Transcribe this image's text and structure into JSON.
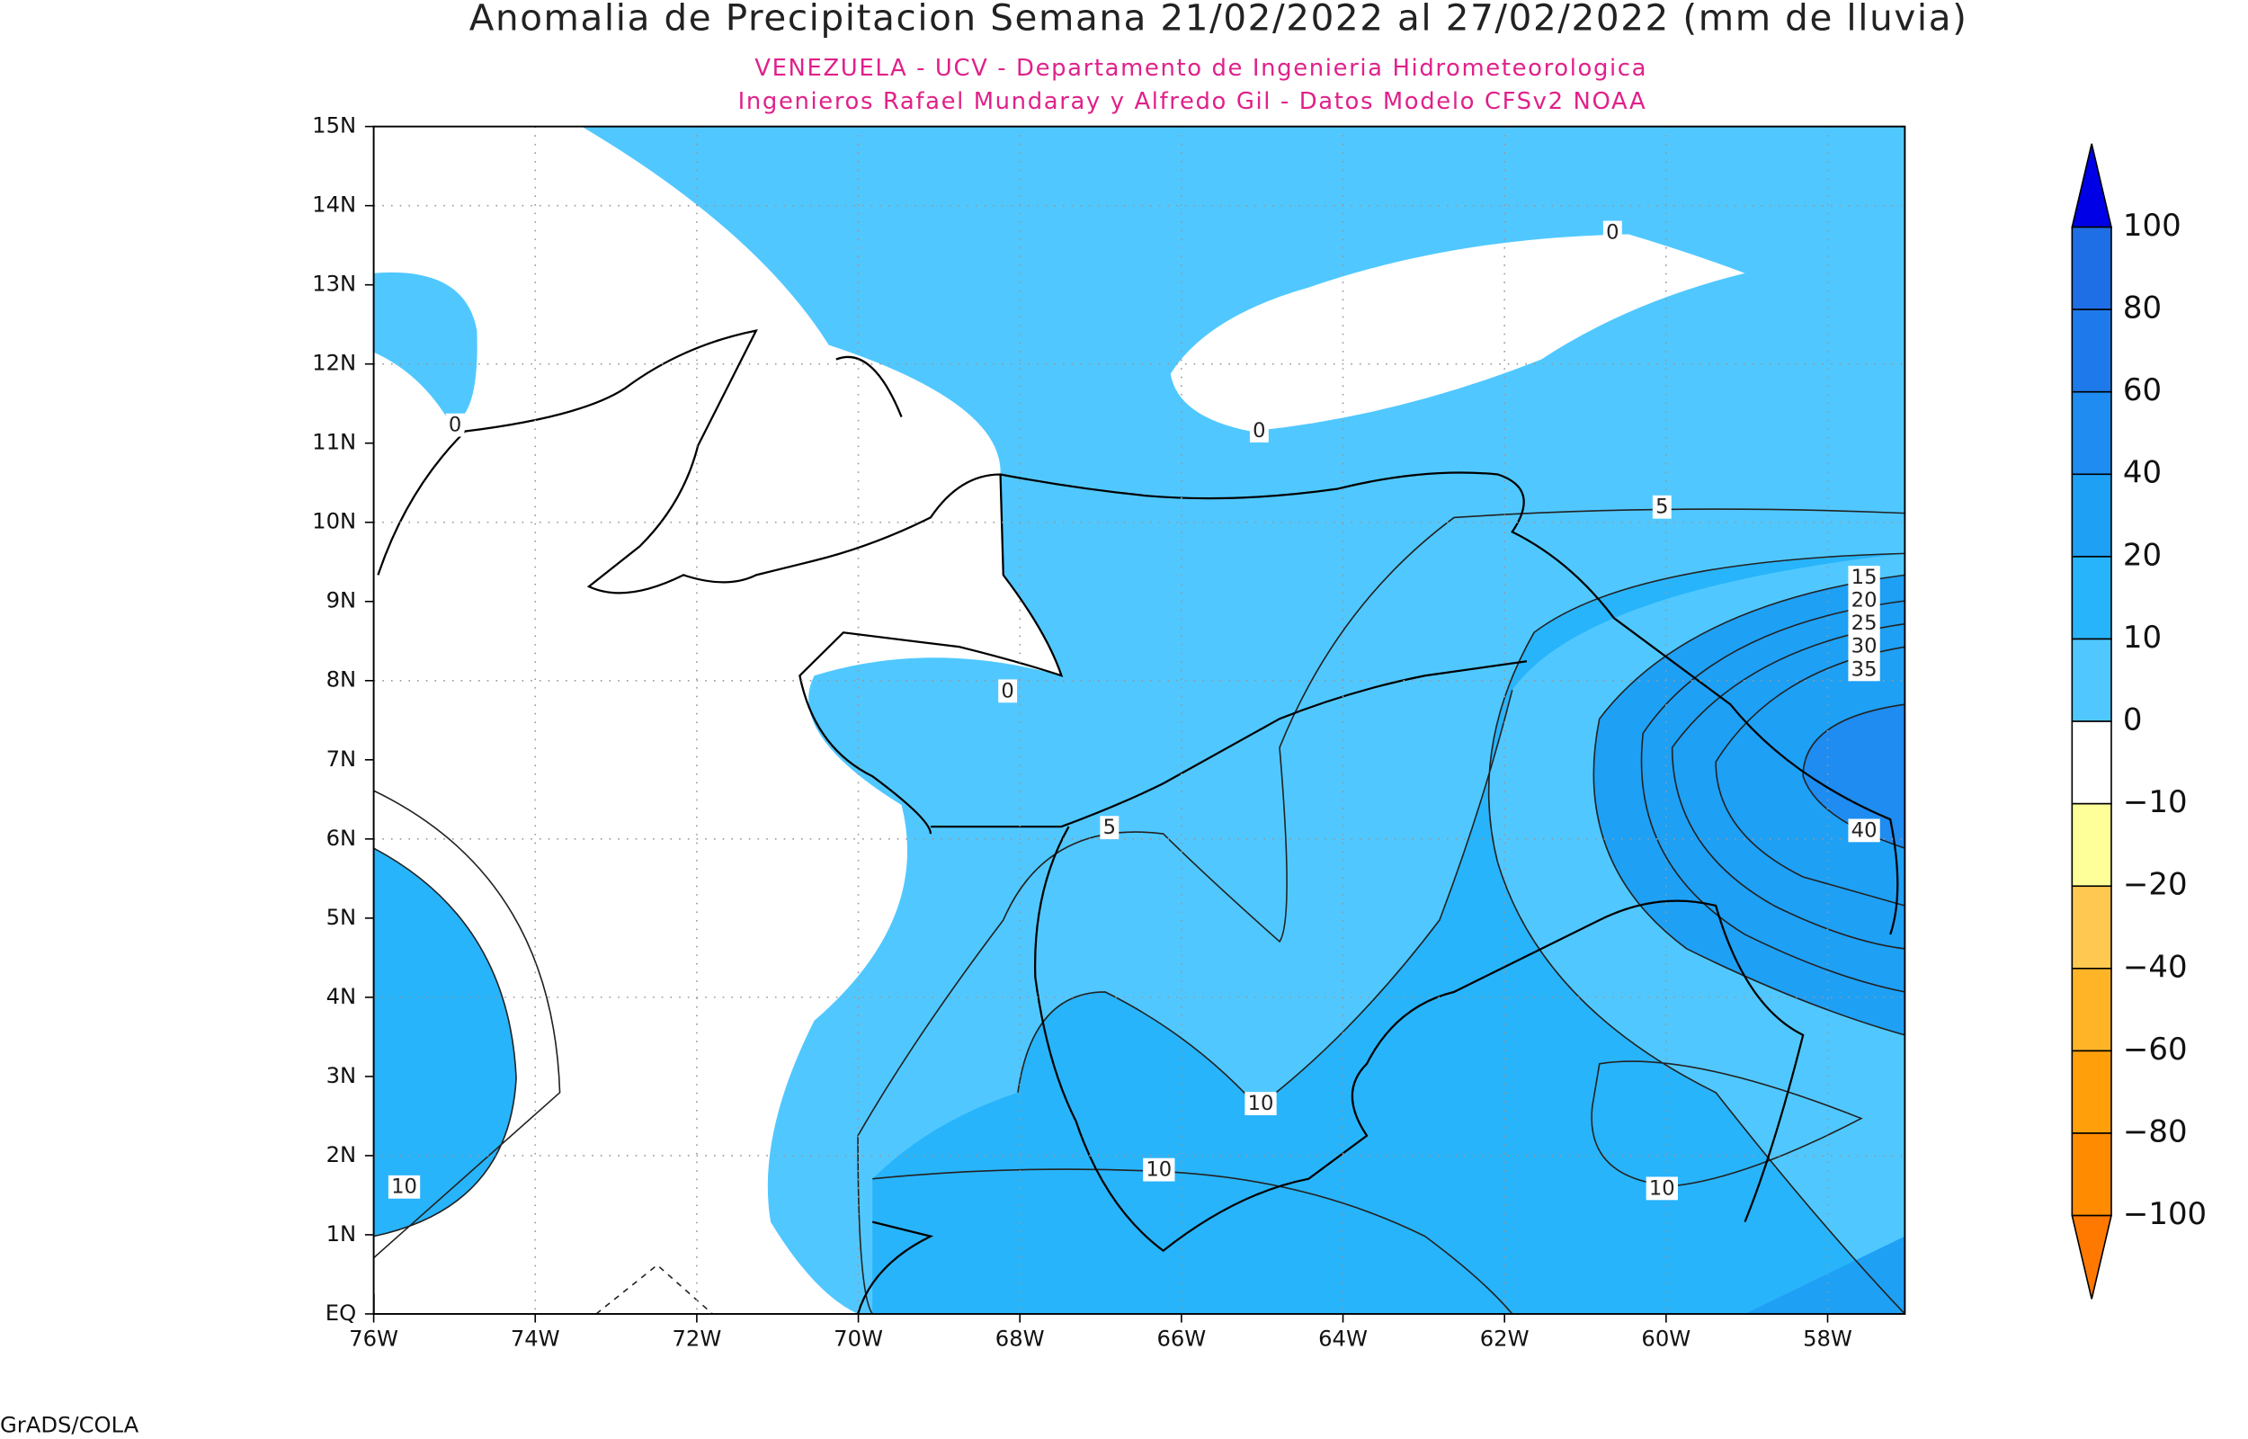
{
  "title": "Anomalia de Precipitacion Semana 21/02/2022 al 27/02/2022 (mm de lluvia)",
  "subtitle_lines": [
    "VENEZUELA - UCV - Departamento de Ingenieria Hidrometeorologica",
    "Ingenieros Rafael Mundaray y Alfredo Gil - Datos Modelo CFSv2 NOAA"
  ],
  "lat_labels": [
    "EQ",
    "1N",
    "2N",
    "3N",
    "4N",
    "5N",
    "6N",
    "7N",
    "8N",
    "9N",
    "10N",
    "11N",
    "12N",
    "13N",
    "14N",
    "15N"
  ],
  "lon_labels": [
    "76W",
    "74W",
    "72W",
    "70W",
    "68W",
    "66W",
    "64W",
    "62W",
    "60W",
    "58W"
  ],
  "colorbar": {
    "labels": [
      "100",
      "80",
      "60",
      "40",
      "20",
      "10",
      "0",
      "−10",
      "−20",
      "−40",
      "−60",
      "−80",
      "−100"
    ],
    "colors": [
      "#0000e6",
      "#1e6ee6",
      "#1e7aeb",
      "#1e8cf0",
      "#1ea0f5",
      "#28b4fa",
      "#50c8ff",
      "#ffffff",
      "#ffff99",
      "#ffc850",
      "#ffb428",
      "#ffa00a",
      "#ff8c00",
      "#ff7800"
    ]
  },
  "contour_labels": [
    "0",
    "0",
    "0",
    "0",
    "5",
    "5",
    "15",
    "20",
    "25",
    "30",
    "35",
    "40",
    "10",
    "10",
    "10",
    "10"
  ],
  "footer": "GrADS/COLA"
}
